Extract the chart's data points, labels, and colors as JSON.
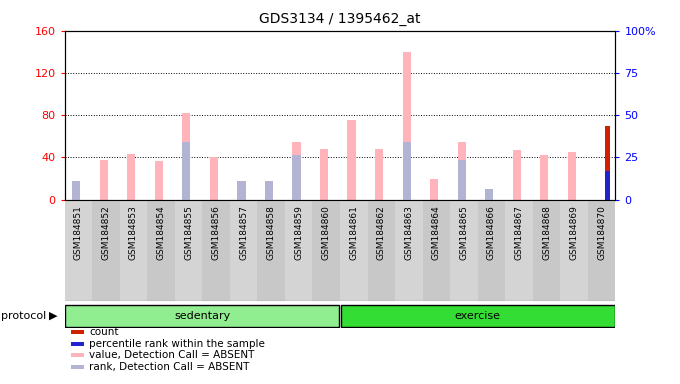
{
  "title": "GDS3134 / 1395462_at",
  "samples": [
    "GSM184851",
    "GSM184852",
    "GSM184853",
    "GSM184854",
    "GSM184855",
    "GSM184856",
    "GSM184857",
    "GSM184858",
    "GSM184859",
    "GSM184860",
    "GSM184861",
    "GSM184862",
    "GSM184863",
    "GSM184864",
    "GSM184865",
    "GSM184866",
    "GSM184867",
    "GSM184868",
    "GSM184869",
    "GSM184870"
  ],
  "value_absent": [
    8,
    38,
    43,
    37,
    82,
    40,
    10,
    12,
    55,
    48,
    75,
    48,
    140,
    20,
    55,
    3,
    47,
    42,
    45,
    0
  ],
  "rank_absent": [
    18,
    0,
    0,
    0,
    55,
    0,
    18,
    18,
    42,
    0,
    0,
    0,
    55,
    0,
    38,
    10,
    0,
    0,
    0,
    0
  ],
  "count_val": [
    0,
    0,
    0,
    0,
    0,
    0,
    0,
    0,
    0,
    0,
    0,
    0,
    0,
    0,
    0,
    0,
    0,
    0,
    0,
    70
  ],
  "percentile_rank": [
    0,
    0,
    0,
    0,
    0,
    0,
    0,
    0,
    0,
    0,
    0,
    0,
    0,
    0,
    0,
    0,
    0,
    0,
    0,
    27
  ],
  "sedentary_count": 10,
  "exercise_count": 10,
  "ylim_left": [
    0,
    160
  ],
  "ylim_right": [
    0,
    100
  ],
  "yticks_left": [
    0,
    40,
    80,
    120,
    160
  ],
  "yticks_right": [
    0,
    25,
    50,
    75,
    100
  ],
  "color_value_absent": "#ffb3ba",
  "color_rank_absent": "#b3b3d4",
  "color_count": "#cc2200",
  "color_percentile": "#2222cc",
  "bg_chart": "#ffffff",
  "grid_color": "black"
}
